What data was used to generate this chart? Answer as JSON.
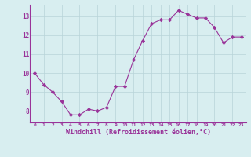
{
  "x": [
    0,
    1,
    2,
    3,
    4,
    5,
    6,
    7,
    8,
    9,
    10,
    11,
    12,
    13,
    14,
    15,
    16,
    17,
    18,
    19,
    20,
    21,
    22,
    23
  ],
  "y": [
    10.0,
    9.4,
    9.0,
    8.5,
    7.8,
    7.8,
    8.1,
    8.0,
    8.2,
    9.3,
    9.3,
    10.7,
    11.7,
    12.6,
    12.8,
    12.8,
    13.3,
    13.1,
    12.9,
    12.9,
    12.4,
    11.6,
    11.9,
    11.9
  ],
  "line_color": "#993399",
  "marker": "D",
  "marker_size": 2.2,
  "bg_color": "#d8eef0",
  "grid_color": "#b8d4d8",
  "xlabel": "Windchill (Refroidissement éolien,°C)",
  "xlabel_color": "#993399",
  "tick_color": "#993399",
  "axis_line_color": "#993399",
  "ylabel_ticks": [
    8,
    9,
    10,
    11,
    12,
    13
  ],
  "xlim": [
    -0.5,
    23.5
  ],
  "ylim": [
    7.4,
    13.6
  ]
}
